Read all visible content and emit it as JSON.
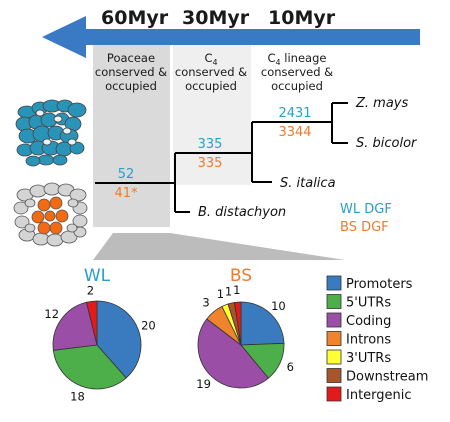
{
  "timeline": {
    "labels": [
      "60Myr",
      "30Myr",
      "10Myr"
    ],
    "arrow_color": "#3a79c3"
  },
  "columns": [
    {
      "line1": "Poaceae",
      "line2": "conserved &",
      "line3": "occupied"
    },
    {
      "line1": "C",
      "sub": "4",
      "line2": "conserved &",
      "line3": "occupied"
    },
    {
      "line1": "C",
      "sub": "4",
      "line1_rest": " lineage",
      "line2": "conserved &",
      "line3": "occupied"
    }
  ],
  "tree": {
    "nodes": [
      {
        "wl": "52",
        "bs": "41*"
      },
      {
        "wl": "335",
        "bs": "335"
      },
      {
        "wl": "2431",
        "bs": "3344"
      }
    ],
    "species": [
      "Z. mays",
      "S. bicolor",
      "S. italica",
      "B. distachyon"
    ]
  },
  "legend_dgf": {
    "wl": "WL DGF",
    "bs": "BS DGF"
  },
  "colors": {
    "wl": "#2a9fc9",
    "bs": "#ef7a2a",
    "col1_bg": "#dadada",
    "col2_bg": "#efefef",
    "cell_blue": "#2a93b8",
    "cell_orange": "#f26a12"
  },
  "chart_data": [
    {
      "type": "pie",
      "title": "WL",
      "categories": [
        "Promoters",
        "5'UTRs",
        "Coding",
        "Introns",
        "3'UTRs",
        "Downstream",
        "Intergenic"
      ],
      "values": [
        20,
        18,
        12,
        0,
        0,
        0,
        2
      ],
      "labels": [
        "20",
        "18",
        "12",
        "",
        "",
        "",
        "2"
      ]
    },
    {
      "type": "pie",
      "title": "BS",
      "categories": [
        "Promoters",
        "5'UTRs",
        "Coding",
        "Introns",
        "3'UTRs",
        "Downstream",
        "Intergenic"
      ],
      "values": [
        10,
        6,
        19,
        3,
        1,
        1,
        1
      ],
      "labels": [
        "10",
        "6",
        "19",
        "3",
        "1",
        "1",
        "1"
      ]
    }
  ],
  "legend": [
    {
      "label": "Promoters",
      "color": "#3a7bbf"
    },
    {
      "label": "5'UTRs",
      "color": "#4daf4a"
    },
    {
      "label": "Coding",
      "color": "#9a4ea6"
    },
    {
      "label": "Introns",
      "color": "#f0842c"
    },
    {
      "label": "3'UTRs",
      "color": "#ffff33"
    },
    {
      "label": "Downstream",
      "color": "#a6562a"
    },
    {
      "label": "Intergenic",
      "color": "#e31a1c"
    }
  ]
}
